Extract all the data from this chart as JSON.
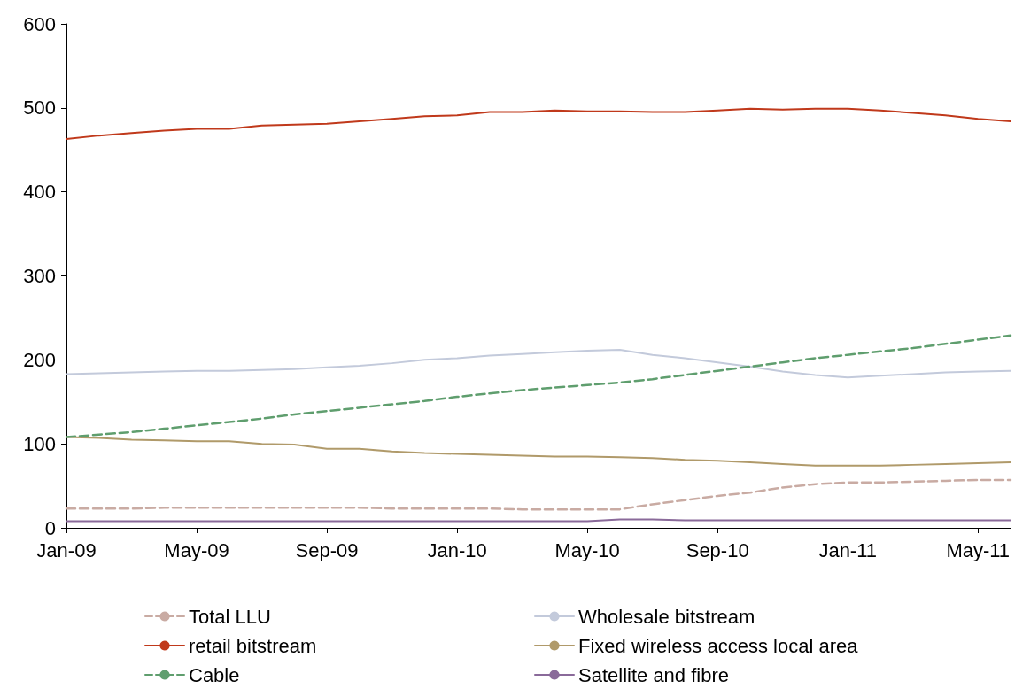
{
  "chart_data": {
    "type": "line",
    "categories": [
      "Jan-09",
      null,
      null,
      null,
      "May-09",
      null,
      null,
      null,
      "Sep-09",
      null,
      null,
      null,
      "Jan-10",
      null,
      null,
      null,
      "May-10",
      null,
      null,
      null,
      "Sep-10",
      null,
      null,
      null,
      "Jan-11",
      null,
      null,
      null,
      "May-11",
      null
    ],
    "ylim": [
      0,
      600
    ],
    "yticks": [
      0,
      100,
      200,
      300,
      400,
      500,
      600
    ],
    "grid": false,
    "legend": "bottom",
    "marker": "none",
    "series": [
      {
        "name": "Total LLU",
        "color": "#c9aba3",
        "line_style": "dashed",
        "values": [
          23,
          23,
          23,
          24,
          24,
          24,
          24,
          24,
          24,
          24,
          23,
          23,
          23,
          23,
          22,
          22,
          22,
          22,
          28,
          33,
          38,
          42,
          48,
          52,
          54,
          54,
          55,
          56,
          57,
          57
        ]
      },
      {
        "name": "Wholesale bitstream",
        "color": "#c3cadb",
        "line_style": "solid",
        "values": [
          183,
          184,
          185,
          186,
          187,
          187,
          188,
          189,
          191,
          193,
          196,
          200,
          202,
          205,
          207,
          209,
          211,
          212,
          206,
          202,
          197,
          192,
          186,
          182,
          179,
          181,
          183,
          185,
          186,
          187
        ]
      },
      {
        "name": "retail bitstream",
        "color": "#c0391b",
        "line_style": "solid",
        "values": [
          463,
          467,
          470,
          473,
          475,
          475,
          479,
          480,
          481,
          484,
          487,
          490,
          491,
          495,
          495,
          497,
          496,
          496,
          495,
          495,
          497,
          499,
          498,
          499,
          499,
          497,
          494,
          491,
          487,
          484
        ]
      },
      {
        "name": "Fixed wireless access local area",
        "color": "#b09a6a",
        "line_style": "solid",
        "values": [
          108,
          107,
          105,
          104,
          103,
          103,
          100,
          99,
          94,
          94,
          91,
          89,
          88,
          87,
          86,
          85,
          85,
          84,
          83,
          81,
          80,
          78,
          76,
          74,
          74,
          74,
          75,
          76,
          77,
          78
        ]
      },
      {
        "name": "Cable",
        "color": "#5f9e6e",
        "line_style": "dashed",
        "values": [
          108,
          111,
          114,
          118,
          122,
          126,
          130,
          135,
          139,
          143,
          147,
          151,
          156,
          160,
          164,
          167,
          170,
          173,
          177,
          182,
          187,
          192,
          197,
          202,
          206,
          210,
          214,
          219,
          224,
          229
        ]
      },
      {
        "name": "Satellite and fibre",
        "color": "#8a6a9a",
        "line_style": "solid",
        "values": [
          8,
          8,
          8,
          8,
          8,
          8,
          8,
          8,
          8,
          8,
          8,
          8,
          8,
          8,
          8,
          8,
          8,
          10,
          10,
          9,
          9,
          9,
          9,
          9,
          9,
          9,
          9,
          9,
          9,
          9
        ]
      }
    ]
  }
}
